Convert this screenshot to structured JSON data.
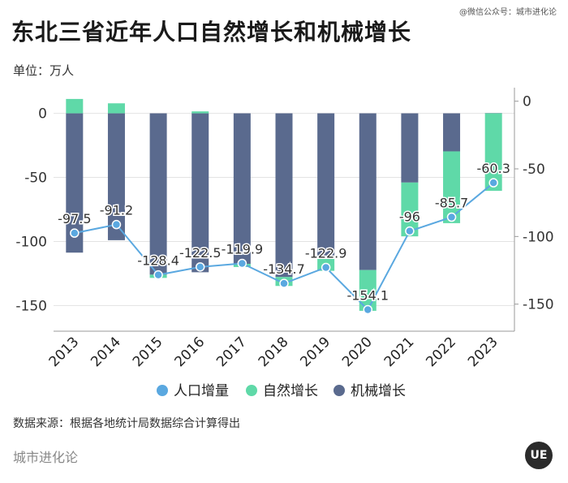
{
  "watermark": "@微信公众号：城市进化论",
  "title": "东北三省近年人口自然增长和机械增长",
  "unit_label": "单位：万人",
  "source": "数据来源：根据各地统计局数据综合计算得出",
  "brand": "城市进化论",
  "logo_text": "UE",
  "colors": {
    "line": "#5aa8e0",
    "natural": "#5fd9a8",
    "mechanical": "#5a6a8e",
    "grid": "#e3e3e3",
    "axis": "#999999"
  },
  "chart_data": {
    "type": "bar",
    "categories": [
      "2013",
      "2014",
      "2015",
      "2016",
      "2017",
      "2018",
      "2019",
      "2020",
      "2021",
      "2022",
      "2023"
    ],
    "series": [
      {
        "name": "自然增长",
        "kind": "bar",
        "values": [
          11.2,
          7.8,
          -2.5,
          1.5,
          -2.4,
          -7.0,
          -9.5,
          -31.8,
          -42.0,
          -56.0,
          -60.5
        ]
      },
      {
        "name": "机械增长",
        "kind": "bar",
        "values": [
          -108.7,
          -99.0,
          -125.9,
          -124.0,
          -117.5,
          -127.7,
          -113.4,
          -122.3,
          -54.0,
          -29.7,
          0.2
        ]
      },
      {
        "name": "人口增量",
        "kind": "line",
        "values": [
          -97.5,
          -91.2,
          -128.4,
          -122.5,
          -119.9,
          -134.7,
          -122.9,
          -154.1,
          -96,
          -85.7,
          -60.3
        ]
      }
    ],
    "point_labels": [
      "-97.5",
      "-91.2",
      "-128.4",
      "-122.5",
      "-119.9",
      "-134.7",
      "-122.9",
      "-154.1",
      "-96",
      "-85.7",
      "-60.3"
    ],
    "left_axis": {
      "ylim": [
        -170,
        20
      ],
      "ticks": [
        0,
        -50,
        -100,
        -150
      ],
      "tick_labels": [
        "0",
        "-50",
        "-100",
        "-150"
      ]
    },
    "right_axis": {
      "ylim": [
        -170,
        10
      ],
      "ticks": [
        0,
        -50,
        -100,
        -150
      ],
      "tick_labels": [
        "0",
        "-50",
        "-100",
        "-150"
      ]
    },
    "legend": [
      {
        "name": "人口增量",
        "shape": "circle",
        "color": "#5aa8e0"
      },
      {
        "name": "自然增长",
        "shape": "circle",
        "color": "#5fd9a8"
      },
      {
        "name": "机械增长",
        "shape": "circle",
        "color": "#5a6a8e"
      }
    ]
  }
}
